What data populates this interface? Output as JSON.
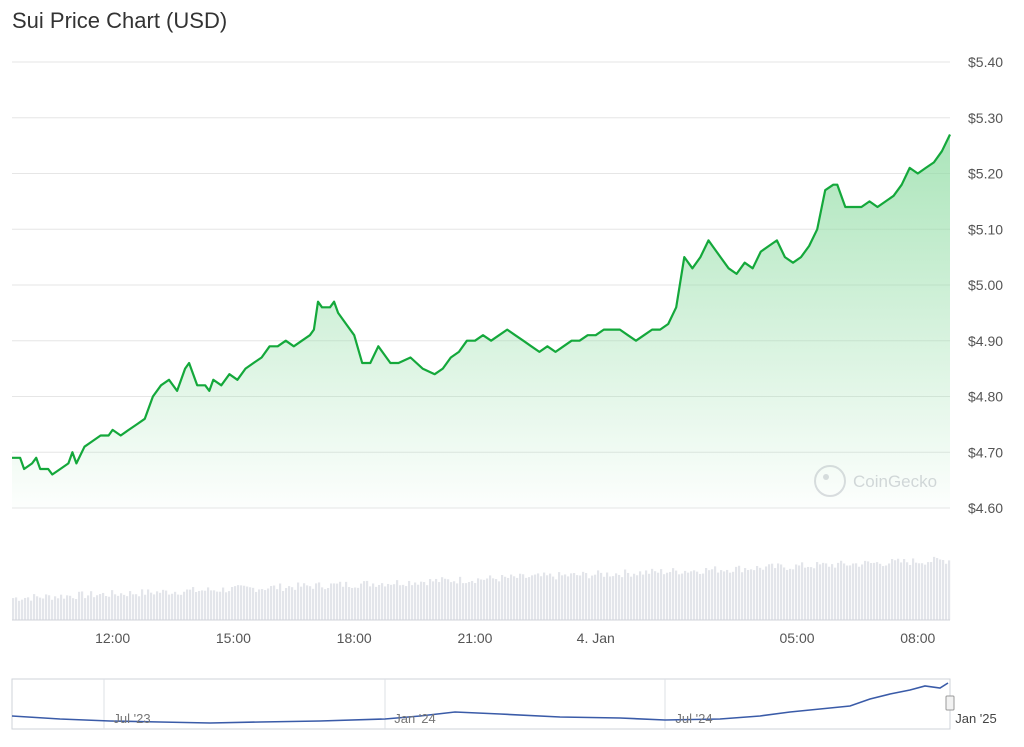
{
  "title": "Sui Price Chart (USD)",
  "watermark": "CoinGecko",
  "colors": {
    "line": "#14a83b",
    "fill_top": "#bfe8c8",
    "grid": "#e6e6e6",
    "axis_text": "#555555",
    "volume": "#e3e5ea",
    "nav_line": "#3a5ba8"
  },
  "chart_data": [
    {
      "type": "line",
      "title": "Sui Price Chart (USD)",
      "ylim": [
        4.6,
        5.4
      ],
      "y_ticks": [
        "$4.60",
        "$4.70",
        "$4.80",
        "$4.90",
        "$5.00",
        "$5.10",
        "$5.20",
        "$5.30",
        "$5.40"
      ],
      "y_tick_values": [
        4.6,
        4.7,
        4.8,
        4.9,
        5.0,
        5.1,
        5.2,
        5.3,
        5.4
      ],
      "xlim": [
        9.5,
        32.8
      ],
      "x_ticks": [
        "12:00",
        "15:00",
        "18:00",
        "21:00",
        "4. Jan",
        "05:00",
        "08:00"
      ],
      "x_tick_values": [
        12,
        15,
        18,
        21,
        24,
        29,
        32
      ],
      "x_unit": "hours from 3 Jan 00:00",
      "series": [
        {
          "points": [
            [
              9.5,
              4.69
            ],
            [
              9.7,
              4.69
            ],
            [
              9.8,
              4.67
            ],
            [
              10.0,
              4.68
            ],
            [
              10.1,
              4.69
            ],
            [
              10.2,
              4.67
            ],
            [
              10.4,
              4.67
            ],
            [
              10.5,
              4.66
            ],
            [
              10.7,
              4.67
            ],
            [
              10.9,
              4.68
            ],
            [
              11.0,
              4.7
            ],
            [
              11.1,
              4.68
            ],
            [
              11.3,
              4.71
            ],
            [
              11.5,
              4.72
            ],
            [
              11.7,
              4.73
            ],
            [
              11.9,
              4.73
            ],
            [
              12.0,
              4.74
            ],
            [
              12.2,
              4.73
            ],
            [
              12.4,
              4.74
            ],
            [
              12.6,
              4.75
            ],
            [
              12.8,
              4.76
            ],
            [
              13.0,
              4.8
            ],
            [
              13.2,
              4.82
            ],
            [
              13.4,
              4.83
            ],
            [
              13.6,
              4.81
            ],
            [
              13.8,
              4.85
            ],
            [
              13.9,
              4.86
            ],
            [
              14.0,
              4.84
            ],
            [
              14.1,
              4.82
            ],
            [
              14.3,
              4.82
            ],
            [
              14.4,
              4.81
            ],
            [
              14.5,
              4.83
            ],
            [
              14.7,
              4.82
            ],
            [
              14.9,
              4.84
            ],
            [
              15.1,
              4.83
            ],
            [
              15.3,
              4.85
            ],
            [
              15.5,
              4.86
            ],
            [
              15.7,
              4.87
            ],
            [
              15.9,
              4.89
            ],
            [
              16.1,
              4.89
            ],
            [
              16.3,
              4.9
            ],
            [
              16.5,
              4.89
            ],
            [
              16.7,
              4.9
            ],
            [
              16.9,
              4.91
            ],
            [
              17.0,
              4.92
            ],
            [
              17.1,
              4.97
            ],
            [
              17.2,
              4.96
            ],
            [
              17.4,
              4.96
            ],
            [
              17.5,
              4.97
            ],
            [
              17.6,
              4.95
            ],
            [
              17.8,
              4.93
            ],
            [
              18.0,
              4.91
            ],
            [
              18.2,
              4.86
            ],
            [
              18.4,
              4.86
            ],
            [
              18.6,
              4.89
            ],
            [
              18.8,
              4.87
            ],
            [
              18.9,
              4.86
            ],
            [
              19.1,
              4.86
            ],
            [
              19.4,
              4.87
            ],
            [
              19.7,
              4.85
            ],
            [
              20.0,
              4.84
            ],
            [
              20.2,
              4.85
            ],
            [
              20.4,
              4.87
            ],
            [
              20.6,
              4.88
            ],
            [
              20.8,
              4.9
            ],
            [
              21.0,
              4.9
            ],
            [
              21.2,
              4.91
            ],
            [
              21.4,
              4.9
            ],
            [
              21.6,
              4.91
            ],
            [
              21.8,
              4.92
            ],
            [
              22.0,
              4.91
            ],
            [
              22.2,
              4.9
            ],
            [
              22.4,
              4.89
            ],
            [
              22.6,
              4.88
            ],
            [
              22.8,
              4.89
            ],
            [
              23.0,
              4.88
            ],
            [
              23.2,
              4.89
            ],
            [
              23.4,
              4.9
            ],
            [
              23.6,
              4.9
            ],
            [
              23.8,
              4.91
            ],
            [
              24.0,
              4.91
            ],
            [
              24.2,
              4.92
            ],
            [
              24.4,
              4.92
            ],
            [
              24.6,
              4.92
            ],
            [
              24.8,
              4.91
            ],
            [
              25.0,
              4.9
            ],
            [
              25.2,
              4.91
            ],
            [
              25.4,
              4.92
            ],
            [
              25.6,
              4.92
            ],
            [
              25.8,
              4.93
            ],
            [
              26.0,
              4.96
            ],
            [
              26.2,
              5.05
            ],
            [
              26.4,
              5.03
            ],
            [
              26.6,
              5.05
            ],
            [
              26.8,
              5.08
            ],
            [
              26.9,
              5.07
            ],
            [
              27.1,
              5.05
            ],
            [
              27.3,
              5.03
            ],
            [
              27.5,
              5.02
            ],
            [
              27.7,
              5.04
            ],
            [
              27.9,
              5.03
            ],
            [
              28.1,
              5.06
            ],
            [
              28.3,
              5.07
            ],
            [
              28.5,
              5.08
            ],
            [
              28.7,
              5.05
            ],
            [
              28.9,
              5.04
            ],
            [
              29.1,
              5.05
            ],
            [
              29.3,
              5.07
            ],
            [
              29.5,
              5.1
            ],
            [
              29.7,
              5.17
            ],
            [
              29.9,
              5.18
            ],
            [
              30.0,
              5.18
            ],
            [
              30.2,
              5.14
            ],
            [
              30.4,
              5.14
            ],
            [
              30.6,
              5.14
            ],
            [
              30.8,
              5.15
            ],
            [
              31.0,
              5.14
            ],
            [
              31.2,
              5.15
            ],
            [
              31.4,
              5.16
            ],
            [
              31.6,
              5.18
            ],
            [
              31.8,
              5.21
            ],
            [
              32.0,
              5.2
            ],
            [
              32.2,
              5.21
            ],
            [
              32.4,
              5.22
            ],
            [
              32.6,
              5.24
            ],
            [
              32.8,
              5.27
            ],
            [
              33.0,
              5.29
            ]
          ]
        }
      ]
    }
  ],
  "navigator": {
    "x_labels": [
      "Jul '23",
      "Jan '24",
      "Jul '24",
      "Jan '25"
    ]
  }
}
